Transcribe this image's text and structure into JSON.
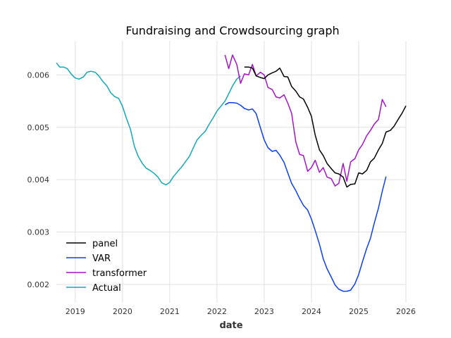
{
  "chart_data": {
    "type": "line",
    "title": "Fundraising and Crowdsourcing graph",
    "xlabel": "date",
    "ylabel": "",
    "xlim": [
      2018.6,
      2026.0
    ],
    "ylim": [
      0.00165,
      0.00665
    ],
    "x_ticks": [
      "2019",
      "2020",
      "2021",
      "2022",
      "2023",
      "2024",
      "2025",
      "2026"
    ],
    "x_tick_values": [
      2019,
      2020,
      2021,
      2022,
      2023,
      2024,
      2025,
      2026
    ],
    "y_ticks": [
      "0.002",
      "0.003",
      "0.004",
      "0.005",
      "0.006"
    ],
    "y_tick_values": [
      0.002,
      0.003,
      0.004,
      0.005,
      0.006
    ],
    "grid": true,
    "legend_position": "lower-left",
    "series": [
      {
        "name": "panel",
        "color": "#000000",
        "x": [
          2022.58,
          2022.67,
          2022.75,
          2022.83,
          2022.92,
          2023.0,
          2023.08,
          2023.17,
          2023.25,
          2023.33,
          2023.42,
          2023.5,
          2023.58,
          2023.67,
          2023.75,
          2023.83,
          2023.92,
          2024.0,
          2024.08,
          2024.17,
          2024.25,
          2024.33,
          2024.42,
          2024.5,
          2024.58,
          2024.67,
          2024.75,
          2024.83,
          2024.92,
          2025.0,
          2025.08,
          2025.17,
          2025.25,
          2025.33,
          2025.42,
          2025.5,
          2025.58,
          2025.67,
          2025.75,
          2025.83,
          2025.92,
          2026.0
        ],
        "y": [
          0.00615,
          0.00615,
          0.00613,
          0.00598,
          0.00595,
          0.00593,
          0.006,
          0.00604,
          0.00607,
          0.00613,
          0.00597,
          0.00596,
          0.00578,
          0.00569,
          0.00558,
          0.00554,
          0.00538,
          0.00521,
          0.00485,
          0.00457,
          0.00446,
          0.00431,
          0.00421,
          0.00413,
          0.00411,
          0.00405,
          0.00386,
          0.00391,
          0.00392,
          0.00413,
          0.00411,
          0.00418,
          0.00434,
          0.00441,
          0.00457,
          0.00469,
          0.00491,
          0.00494,
          0.00502,
          0.00514,
          0.00527,
          0.00541
        ]
      },
      {
        "name": "VAR",
        "color": "#0b3ff0",
        "x": [
          2022.17,
          2022.25,
          2022.33,
          2022.42,
          2022.5,
          2022.58,
          2022.67,
          2022.75,
          2022.83,
          2022.92,
          2023.0,
          2023.08,
          2023.17,
          2023.25,
          2023.33,
          2023.42,
          2023.5,
          2023.58,
          2023.67,
          2023.75,
          2023.83,
          2023.92,
          2024.0,
          2024.08,
          2024.17,
          2024.25,
          2024.33,
          2024.42,
          2024.5,
          2024.58,
          2024.67,
          2024.75,
          2024.83,
          2024.92,
          2025.0,
          2025.08,
          2025.17,
          2025.25,
          2025.33,
          2025.42,
          2025.5,
          2025.58
        ],
        "y": [
          0.00543,
          0.00547,
          0.00547,
          0.00546,
          0.00542,
          0.00536,
          0.00533,
          0.00535,
          0.00526,
          0.00499,
          0.00476,
          0.00461,
          0.00454,
          0.00456,
          0.00447,
          0.00433,
          0.00413,
          0.00393,
          0.00379,
          0.00364,
          0.00351,
          0.00342,
          0.00325,
          0.00303,
          0.00277,
          0.00249,
          0.0023,
          0.00214,
          0.00199,
          0.00191,
          0.00187,
          0.00187,
          0.00189,
          0.00201,
          0.00219,
          0.00243,
          0.00269,
          0.00288,
          0.00317,
          0.00346,
          0.00378,
          0.00406
        ]
      },
      {
        "name": "transformer",
        "color": "#a414c6",
        "x": [
          2022.17,
          2022.25,
          2022.33,
          2022.42,
          2022.5,
          2022.58,
          2022.67,
          2022.75,
          2022.83,
          2022.92,
          2023.0,
          2023.08,
          2023.17,
          2023.25,
          2023.33,
          2023.42,
          2023.5,
          2023.58,
          2023.67,
          2023.75,
          2023.83,
          2023.92,
          2024.0,
          2024.08,
          2024.17,
          2024.25,
          2024.33,
          2024.42,
          2024.5,
          2024.58,
          2024.67,
          2024.75,
          2024.83,
          2024.92,
          2025.0,
          2025.08,
          2025.17,
          2025.25,
          2025.33,
          2025.42,
          2025.5,
          2025.58
        ],
        "y": [
          0.00638,
          0.00612,
          0.00638,
          0.0062,
          0.00584,
          0.00602,
          0.006,
          0.0062,
          0.00598,
          0.00605,
          0.006,
          0.00576,
          0.00572,
          0.00558,
          0.00556,
          0.00562,
          0.00546,
          0.00527,
          0.00472,
          0.00448,
          0.00446,
          0.00416,
          0.00423,
          0.00437,
          0.00414,
          0.00423,
          0.00405,
          0.00402,
          0.00388,
          0.00393,
          0.00431,
          0.00397,
          0.00434,
          0.0044,
          0.00457,
          0.00467,
          0.00484,
          0.00494,
          0.00506,
          0.00515,
          0.00553,
          0.00539
        ]
      },
      {
        "name": "Actual",
        "color": "#12a9b6",
        "x": [
          2018.6,
          2018.67,
          2018.75,
          2018.83,
          2018.92,
          2019.0,
          2019.08,
          2019.17,
          2019.25,
          2019.33,
          2019.42,
          2019.5,
          2019.58,
          2019.67,
          2019.75,
          2019.83,
          2019.92,
          2020.0,
          2020.08,
          2020.17,
          2020.25,
          2020.33,
          2020.42,
          2020.5,
          2020.58,
          2020.67,
          2020.75,
          2020.83,
          2020.92,
          2021.0,
          2021.08,
          2021.17,
          2021.25,
          2021.33,
          2021.42,
          2021.5,
          2021.58,
          2021.67,
          2021.75,
          2021.83,
          2021.92,
          2022.0,
          2022.08,
          2022.17,
          2022.25,
          2022.33,
          2022.42,
          2022.5
        ],
        "y": [
          0.00623,
          0.00615,
          0.00615,
          0.00612,
          0.00601,
          0.00594,
          0.00592,
          0.00596,
          0.00605,
          0.00607,
          0.00605,
          0.00598,
          0.00588,
          0.00579,
          0.00566,
          0.00559,
          0.00555,
          0.0054,
          0.00518,
          0.00496,
          0.00464,
          0.00445,
          0.00431,
          0.00422,
          0.00418,
          0.00412,
          0.00405,
          0.00394,
          0.0039,
          0.00395,
          0.00406,
          0.00416,
          0.00424,
          0.00434,
          0.00445,
          0.00461,
          0.00476,
          0.00485,
          0.00492,
          0.00505,
          0.00518,
          0.00531,
          0.0054,
          0.0055,
          0.00564,
          0.00579,
          0.00592,
          0.00598
        ]
      }
    ]
  }
}
